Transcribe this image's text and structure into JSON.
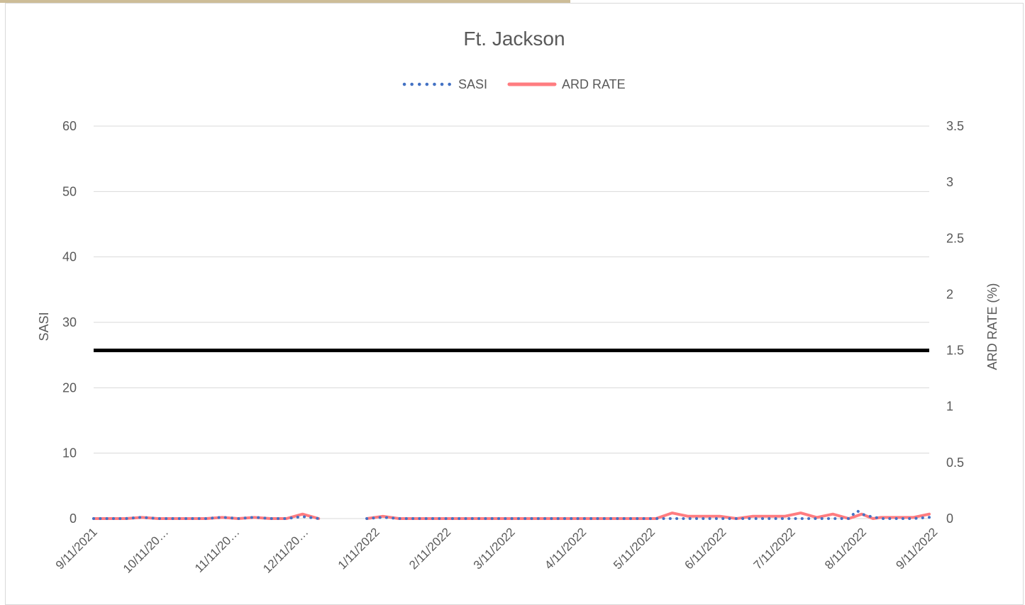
{
  "chart_data": {
    "type": "line",
    "title": "Ft. Jackson",
    "ylabel": "SASI",
    "ylabel_right": "ARD RATE (%)",
    "xlabel": "",
    "ylim": [
      0,
      60
    ],
    "ylim_right": [
      0,
      3.5
    ],
    "y_ticks": [
      0,
      10,
      20,
      30,
      40,
      50,
      60
    ],
    "y_ticks_right": [
      0,
      0.5,
      1,
      1.5,
      2,
      2.5,
      3,
      3.5
    ],
    "x_tick_labels": [
      "9/11/2021",
      "10/11/20…",
      "11/11/20…",
      "12/11/20…",
      "1/11/2022",
      "2/11/2022",
      "3/11/2022",
      "4/11/2022",
      "5/11/2022",
      "6/11/2022",
      "7/11/2022",
      "8/11/2022",
      "9/11/2022"
    ],
    "x_range_weeks": [
      0,
      52
    ],
    "x_tick_weeks": [
      0,
      4.43,
      8.86,
      13.14,
      17.57,
      22,
      26,
      30.43,
      34.71,
      39.14,
      43.43,
      47.86,
      52.29
    ],
    "legend_position": "top-center",
    "grid": true,
    "reference_line": {
      "axis": "right",
      "value": 1.5,
      "color": "#000000"
    },
    "series": [
      {
        "name": "SASI",
        "axis": "left",
        "style": "dotted",
        "color": "#4472c4",
        "points": [
          [
            0,
            0
          ],
          [
            1,
            0
          ],
          [
            2,
            0
          ],
          [
            3,
            0.2
          ],
          [
            4,
            0
          ],
          [
            5,
            0
          ],
          [
            6,
            0
          ],
          [
            7,
            0
          ],
          [
            8,
            0.2
          ],
          [
            9,
            0
          ],
          [
            10,
            0.2
          ],
          [
            11,
            0
          ],
          [
            12,
            0
          ],
          [
            13,
            0.3
          ],
          [
            14,
            0
          ],
          [
            17,
            0
          ],
          [
            18,
            0.2
          ],
          [
            19,
            0
          ],
          [
            20,
            0
          ],
          [
            21,
            0
          ],
          [
            22,
            0
          ],
          [
            23,
            0
          ],
          [
            24,
            0
          ],
          [
            25,
            0
          ],
          [
            26,
            0
          ],
          [
            27,
            0
          ],
          [
            28,
            0
          ],
          [
            29,
            0
          ],
          [
            30,
            0
          ],
          [
            31,
            0
          ],
          [
            32,
            0
          ],
          [
            33,
            0
          ],
          [
            34,
            0
          ],
          [
            35,
            0
          ],
          [
            36,
            0
          ],
          [
            37,
            0
          ],
          [
            38,
            0
          ],
          [
            39,
            0
          ],
          [
            40,
            0
          ],
          [
            41,
            0
          ],
          [
            42,
            0
          ],
          [
            43,
            0
          ],
          [
            44,
            0
          ],
          [
            45,
            0
          ],
          [
            46,
            0
          ],
          [
            47,
            0
          ],
          [
            47.5,
            1.2
          ],
          [
            48,
            0.5
          ],
          [
            49,
            0
          ],
          [
            50,
            0
          ],
          [
            51,
            0
          ],
          [
            52,
            0.2
          ]
        ]
      },
      {
        "name": "ARD RATE",
        "axis": "right",
        "style": "solid",
        "color": "#ff7c80",
        "points": [
          [
            0,
            0
          ],
          [
            1,
            0
          ],
          [
            2,
            0
          ],
          [
            3,
            0.01
          ],
          [
            4,
            0
          ],
          [
            5,
            0
          ],
          [
            6,
            0
          ],
          [
            7,
            0
          ],
          [
            8,
            0.01
          ],
          [
            9,
            0
          ],
          [
            10,
            0.01
          ],
          [
            11,
            0
          ],
          [
            12,
            0
          ],
          [
            13,
            0.04
          ],
          [
            14,
            0
          ],
          [
            17,
            0
          ],
          [
            18,
            0.02
          ],
          [
            19,
            0
          ],
          [
            20,
            0
          ],
          [
            21,
            0
          ],
          [
            22,
            0
          ],
          [
            23,
            0
          ],
          [
            24,
            0
          ],
          [
            25,
            0
          ],
          [
            26,
            0
          ],
          [
            27,
            0
          ],
          [
            28,
            0
          ],
          [
            29,
            0
          ],
          [
            30,
            0
          ],
          [
            31,
            0
          ],
          [
            32,
            0
          ],
          [
            33,
            0
          ],
          [
            34,
            0
          ],
          [
            35,
            0
          ],
          [
            36,
            0.05
          ],
          [
            37,
            0.02
          ],
          [
            38,
            0.02
          ],
          [
            39,
            0.02
          ],
          [
            40,
            0
          ],
          [
            41,
            0.02
          ],
          [
            42,
            0.02
          ],
          [
            43,
            0.02
          ],
          [
            44,
            0.05
          ],
          [
            45,
            0.01
          ],
          [
            46,
            0.04
          ],
          [
            47,
            0
          ],
          [
            47.8,
            0.04
          ],
          [
            48.5,
            0
          ],
          [
            49,
            0.01
          ],
          [
            50,
            0.01
          ],
          [
            51,
            0.01
          ],
          [
            52,
            0.04
          ]
        ]
      }
    ]
  },
  "colors": {
    "top_band": "#cdbd98",
    "gridline": "#d9d9d9",
    "axis_text": "#595959",
    "title_text": "#595959",
    "reference_line": "#000000"
  }
}
